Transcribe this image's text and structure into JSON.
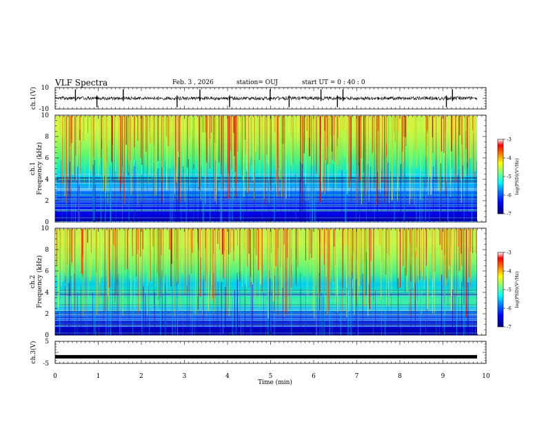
{
  "header": {
    "title": "VLF Spectra",
    "date": "Feb. 3 , 2026",
    "station": "station= OUJ",
    "start_ut": "start UT =  0 : 40 : 0"
  },
  "chart_data": {
    "type": "heatmap",
    "x": {
      "label": "Time (min)",
      "range": [
        0,
        10
      ],
      "ticks": [
        "0",
        "1",
        "2",
        "3",
        "4",
        "5",
        "6",
        "7",
        "8",
        "9",
        "10"
      ]
    },
    "panels": [
      {
        "kind": "line",
        "ylabel": "ch.1(V)",
        "ylim": [
          -10,
          10
        ],
        "yticks": [
          "10",
          "-10"
        ],
        "baseline": 0,
        "spike_times_min": [
          0.47,
          0.97,
          1.58,
          2.83,
          3.36,
          4.05,
          4.99,
          5.43,
          6.17,
          6.55,
          6.68,
          9.08,
          9.22
        ]
      },
      {
        "kind": "spectrogram",
        "ylabel": "ch.1 Frequency (kHz)",
        "ylim": [
          0,
          10
        ],
        "yticks": [
          "0",
          "2",
          "4",
          "6",
          "8",
          "10"
        ],
        "colorbar": {
          "label": "log(PSD)(V²/Hz)",
          "range": [
            -7,
            -3
          ],
          "ticks": [
            "-3",
            "-4",
            "-5",
            "-6",
            "-7"
          ]
        }
      },
      {
        "kind": "spectrogram",
        "ylabel": "ch.2 Frequency (kHz)",
        "ylim": [
          0,
          10
        ],
        "yticks": [
          "0",
          "2",
          "4",
          "6",
          "8",
          "10"
        ],
        "colorbar": {
          "label": "log(PSD)(V²/Hz)",
          "range": [
            -7,
            -3
          ],
          "ticks": [
            "-3",
            "-4",
            "-5",
            "-6",
            "-7"
          ]
        }
      },
      {
        "kind": "line",
        "ylabel": "ch.3(V)",
        "ylim": [
          -5,
          5
        ],
        "yticks": [
          "5",
          "-5"
        ],
        "level": -2
      }
    ],
    "colors": {
      "ramp": [
        "#00007f",
        "#0000ff",
        "#007fff",
        "#00ffff",
        "#7fff7f",
        "#ffff00",
        "#ff7f00",
        "#ff0000",
        "#7f0000"
      ]
    }
  }
}
